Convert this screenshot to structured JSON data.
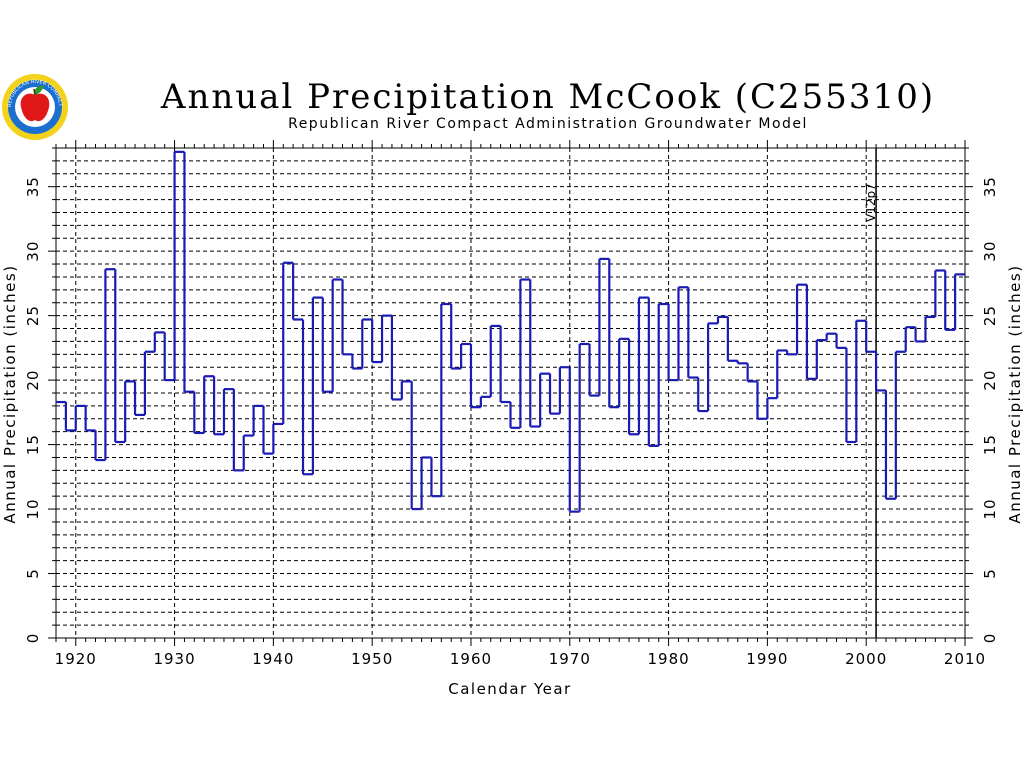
{
  "chart_data": {
    "type": "line",
    "style": "step",
    "title": "Annual Precipitation McCook (C255310)",
    "subtitle": "Republican River Compact Administration Groundwater Model",
    "xlabel": "Calendar Year",
    "ylabel": "Annual Precipitation (inches)",
    "ylabel_right": "Annual Precipitation (inches)",
    "xlim": [
      1918,
      2010
    ],
    "ylim": [
      0,
      38
    ],
    "xticks": [
      1920,
      1930,
      1940,
      1950,
      1960,
      1970,
      1980,
      1990,
      2000,
      2010
    ],
    "yticks": [
      0,
      5,
      10,
      15,
      20,
      25,
      30,
      35
    ],
    "grid": true,
    "marker": {
      "label": "V12p7",
      "x": 2001
    },
    "series": [
      {
        "color": "#1a1ab4",
        "x": [
          1918,
          1919,
          1920,
          1921,
          1922,
          1923,
          1924,
          1925,
          1926,
          1927,
          1928,
          1929,
          1930,
          1931,
          1932,
          1933,
          1934,
          1935,
          1936,
          1937,
          1938,
          1939,
          1940,
          1941,
          1942,
          1943,
          1944,
          1945,
          1946,
          1947,
          1948,
          1949,
          1950,
          1951,
          1952,
          1953,
          1954,
          1955,
          1956,
          1957,
          1958,
          1959,
          1960,
          1961,
          1962,
          1963,
          1964,
          1965,
          1966,
          1967,
          1968,
          1969,
          1970,
          1971,
          1972,
          1973,
          1974,
          1975,
          1976,
          1977,
          1978,
          1979,
          1980,
          1981,
          1982,
          1983,
          1984,
          1985,
          1986,
          1987,
          1988,
          1989,
          1990,
          1991,
          1992,
          1993,
          1994,
          1995,
          1996,
          1997,
          1998,
          1999,
          2000,
          2001,
          2002,
          2003,
          2004,
          2005,
          2006,
          2007,
          2008,
          2009
        ],
        "values": [
          18.3,
          16.1,
          18.0,
          16.1,
          13.8,
          28.6,
          15.2,
          19.9,
          17.3,
          22.2,
          23.7,
          20.0,
          37.7,
          19.1,
          15.9,
          20.3,
          15.8,
          19.3,
          13.0,
          15.7,
          18.0,
          14.3,
          16.6,
          29.1,
          24.7,
          12.7,
          26.4,
          19.1,
          27.8,
          22.0,
          20.9,
          24.7,
          21.4,
          25.0,
          18.5,
          19.9,
          10.0,
          14.0,
          11.0,
          25.9,
          20.9,
          22.8,
          17.9,
          18.7,
          24.2,
          18.3,
          16.3,
          27.8,
          16.4,
          20.5,
          17.4,
          21.0,
          9.8,
          22.8,
          18.8,
          29.4,
          17.9,
          23.2,
          15.8,
          26.4,
          14.9,
          25.9,
          20.0,
          27.2,
          20.2,
          17.6,
          24.4,
          24.9,
          21.5,
          21.3,
          19.9,
          17.0,
          18.6,
          22.3,
          22.0,
          27.4,
          20.1,
          23.1,
          23.6,
          22.5,
          15.2,
          24.6,
          22.2,
          19.2,
          10.8,
          22.2,
          24.1,
          23.0,
          24.9,
          28.5,
          23.9,
          28.2
        ]
      }
    ]
  },
  "logo": {
    "text": "REPUBLICAN RIVER COMPACT",
    "ring_color": "#1a6fd0",
    "outer_color": "#f2d21a",
    "apple_color": "#e01818",
    "leaf_color": "#2a9a2a"
  }
}
